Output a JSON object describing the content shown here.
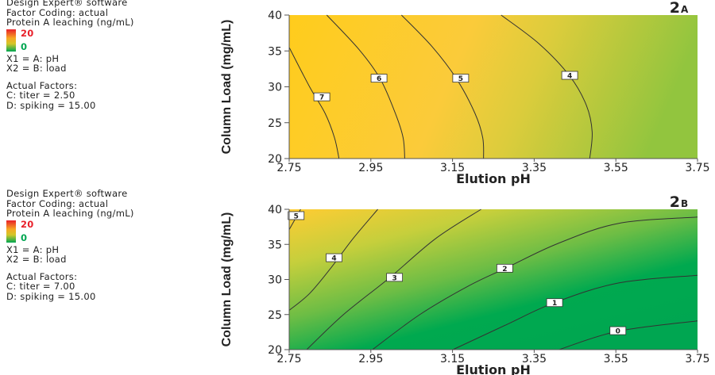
{
  "legends": [
    {
      "lines": [
        "Design Expert® software",
        "Factor Coding: actual",
        "Protein A leaching (ng/mL)"
      ],
      "scale_max": "20",
      "scale_min": "0",
      "factors": [
        "X1 = A: pH",
        "X2 = B: load"
      ],
      "actual_title": "Actual Factors:",
      "actual": [
        "C: titer = 2.50",
        "D: spiking = 15.00"
      ]
    },
    {
      "lines": [
        "Design Expert® software",
        "Factor Coding: actual",
        "Protein A leaching (ng/mL)"
      ],
      "scale_max": "20",
      "scale_min": "0",
      "factors": [
        "X1 = A: pH",
        "X2 = B: load"
      ],
      "actual_title": "Actual Factors:",
      "actual": [
        "C: titer = 7.00",
        "D: spiking = 15.00"
      ]
    }
  ],
  "colors": {
    "scale_high": "#e8202a",
    "scale_mid": "#f7c823",
    "scale_low": "#00a651",
    "text": "#222222",
    "contour": "#333333"
  },
  "chart_data": [
    {
      "type": "contour",
      "panel": "2",
      "panel_sub": "A",
      "xlabel": "Elution pH",
      "ylabel": "Column Load (mg/mL)",
      "xlim": [
        2.75,
        3.75
      ],
      "ylim": [
        20,
        40
      ],
      "xticks": [
        "2.75",
        "2.95",
        "3.15",
        "3.35",
        "3.55",
        "3.75"
      ],
      "yticks": [
        "20",
        "25",
        "30",
        "35",
        "40"
      ],
      "fill": {
        "left": "#ffcc1c",
        "middle": "#fbcb3a",
        "right": "#9cc63e",
        "top_right": "#8dc63f"
      },
      "contours": [
        {
          "level": "7",
          "label_at": [
            2.83,
            28.6
          ],
          "points": [
            [
              2.75,
              35.5
            ],
            [
              2.8,
              30
            ],
            [
              2.838,
              26.3
            ],
            [
              2.861,
              22.9
            ],
            [
              2.872,
              20
            ]
          ]
        },
        {
          "level": "6",
          "label_at": [
            2.97,
            31.2
          ],
          "points": [
            [
              2.842,
              40
            ],
            [
              2.921,
              35.2
            ],
            [
              2.973,
              31.1
            ],
            [
              3.01,
              26.3
            ],
            [
              3.029,
              22.9
            ],
            [
              3.033,
              20
            ]
          ]
        },
        {
          "level": "5",
          "label_at": [
            3.17,
            31.2
          ],
          "points": [
            [
              3.025,
              40
            ],
            [
              3.1,
              35.6
            ],
            [
              3.16,
              31.1
            ],
            [
              3.205,
              26.3
            ],
            [
              3.224,
              22.9
            ],
            [
              3.226,
              20
            ]
          ]
        },
        {
          "level": "4",
          "label_at": [
            3.437,
            31.6
          ],
          "points": [
            [
              3.269,
              40
            ],
            [
              3.362,
              36
            ],
            [
              3.437,
              31.5
            ],
            [
              3.478,
              27.4
            ],
            [
              3.492,
              23.7
            ],
            [
              3.486,
              20
            ]
          ]
        }
      ]
    },
    {
      "type": "contour",
      "panel": "2",
      "panel_sub": "B",
      "xlabel": "Elution pH",
      "ylabel": "Column Load (mg/mL)",
      "xlim": [
        2.75,
        3.75
      ],
      "ylim": [
        20,
        40
      ],
      "xticks": [
        "2.75",
        "2.95",
        "3.15",
        "3.35",
        "3.55",
        "3.75"
      ],
      "yticks": [
        "20",
        "25",
        "30",
        "35",
        "40"
      ],
      "fill": {
        "top_left": "#ffcc33",
        "middle": "#8cc63f",
        "bottom_right": "#00a651"
      },
      "contours": [
        {
          "level": "5",
          "label_at": [
            2.767,
            39.1
          ],
          "points": [
            [
              2.75,
              37.1
            ],
            [
              2.778,
              40
            ]
          ]
        },
        {
          "level": "4",
          "label_at": [
            2.86,
            33.1
          ],
          "points": [
            [
              2.75,
              25.6
            ],
            [
              2.8,
              28
            ],
            [
              2.853,
              31.7
            ],
            [
              2.906,
              35.8
            ],
            [
              2.967,
              40
            ]
          ]
        },
        {
          "level": "3",
          "label_at": [
            3.008,
            30.3
          ],
          "points": [
            [
              2.793,
              20
            ],
            [
              2.883,
              25
            ],
            [
              2.995,
              30.2
            ],
            [
              3.108,
              35.8
            ],
            [
              3.22,
              40
            ]
          ]
        },
        {
          "level": "2",
          "label_at": [
            3.278,
            31.6
          ],
          "points": [
            [
              2.954,
              20
            ],
            [
              3.07,
              25
            ],
            [
              3.19,
              29.1
            ],
            [
              3.28,
              31.6
            ],
            [
              3.407,
              35.1
            ],
            [
              3.557,
              38
            ],
            [
              3.75,
              38.9
            ]
          ]
        },
        {
          "level": "1",
          "label_at": [
            3.4,
            26.7
          ],
          "points": [
            [
              3.151,
              20
            ],
            [
              3.28,
              23.5
            ],
            [
              3.4,
              26.7
            ],
            [
              3.557,
              29.5
            ],
            [
              3.75,
              30.6
            ]
          ]
        },
        {
          "level": "0",
          "label_at": [
            3.555,
            22.7
          ],
          "points": [
            [
              3.411,
              20
            ],
            [
              3.553,
              22.6
            ],
            [
              3.75,
              24.1
            ]
          ]
        }
      ]
    }
  ]
}
